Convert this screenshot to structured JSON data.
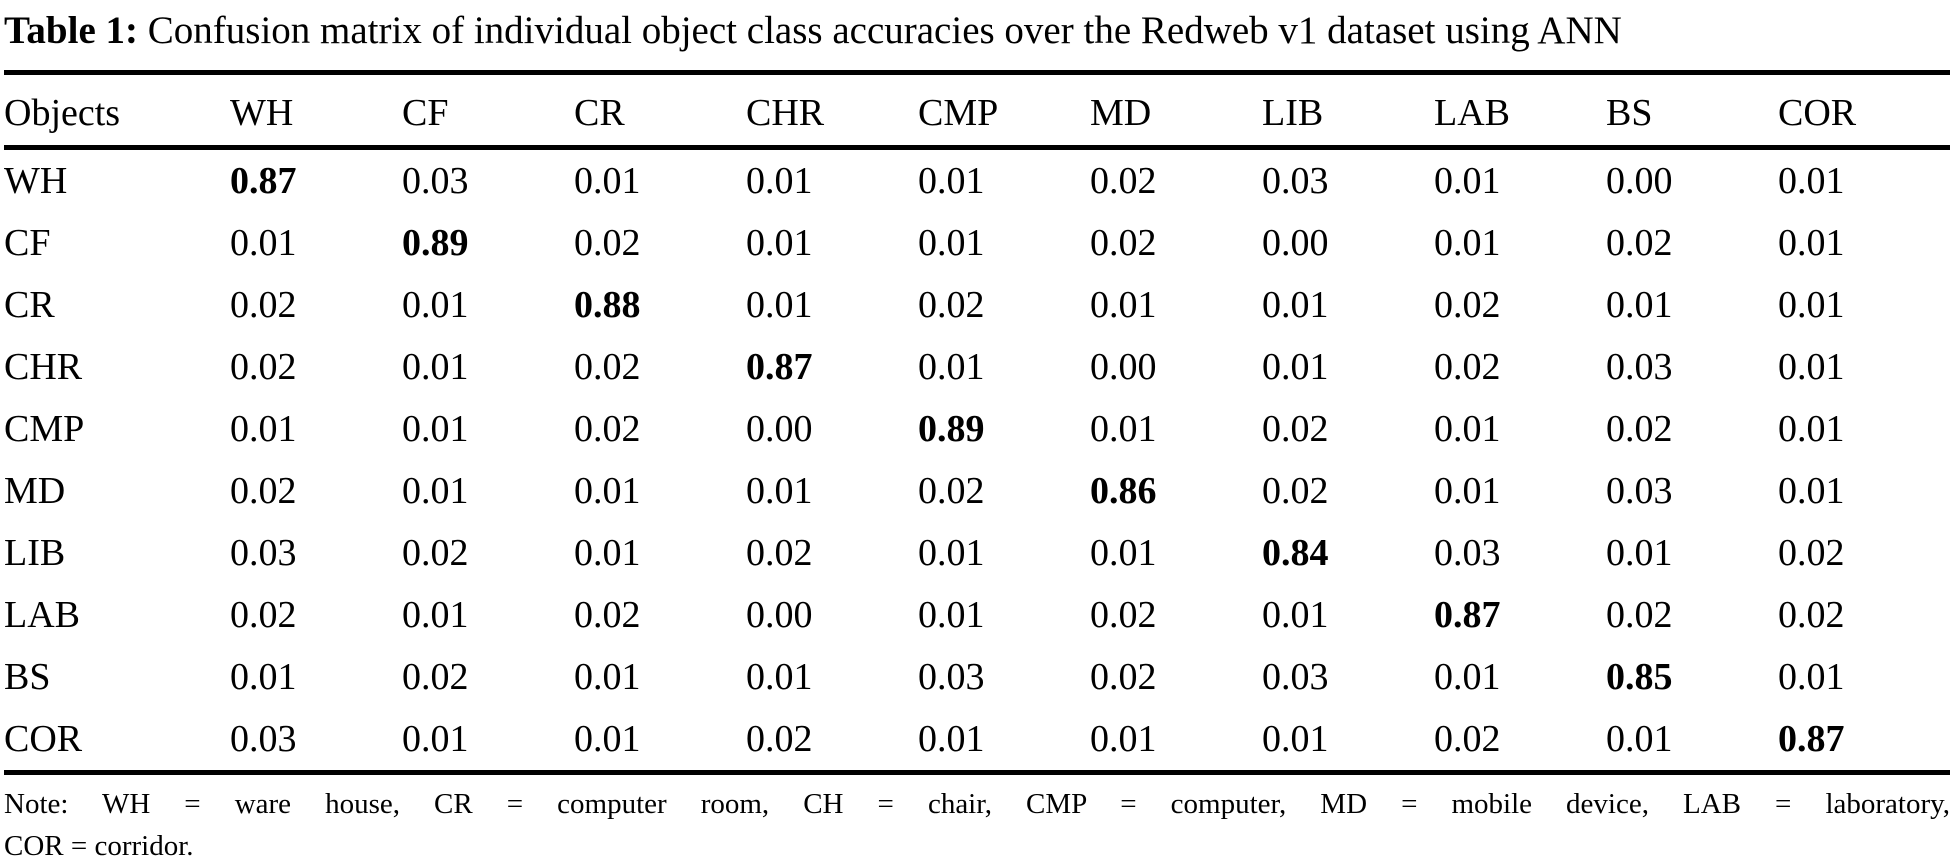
{
  "colors": {
    "text": "#000000",
    "background": "#ffffff",
    "rule": "#000000"
  },
  "title": {
    "label": "Table 1:",
    "text": "Confusion matrix of individual object class accuracies over the Redweb v1 dataset using ANN"
  },
  "table": {
    "corner_header": "Objects",
    "columns": [
      "WH",
      "CF",
      "CR",
      "CHR",
      "CMP",
      "MD",
      "LIB",
      "LAB",
      "BS",
      "COR"
    ],
    "rows": [
      {
        "label": "WH",
        "values": [
          "0.87",
          "0.03",
          "0.01",
          "0.01",
          "0.01",
          "0.02",
          "0.03",
          "0.01",
          "0.00",
          "0.01"
        ],
        "bold_col": 0
      },
      {
        "label": "CF",
        "values": [
          "0.01",
          "0.89",
          "0.02",
          "0.01",
          "0.01",
          "0.02",
          "0.00",
          "0.01",
          "0.02",
          "0.01"
        ],
        "bold_col": 1
      },
      {
        "label": "CR",
        "values": [
          "0.02",
          "0.01",
          "0.88",
          "0.01",
          "0.02",
          "0.01",
          "0.01",
          "0.02",
          "0.01",
          "0.01"
        ],
        "bold_col": 2
      },
      {
        "label": "CHR",
        "values": [
          "0.02",
          "0.01",
          "0.02",
          "0.87",
          "0.01",
          "0.00",
          "0.01",
          "0.02",
          "0.03",
          "0.01"
        ],
        "bold_col": 3
      },
      {
        "label": "CMP",
        "values": [
          "0.01",
          "0.01",
          "0.02",
          "0.00",
          "0.89",
          "0.01",
          "0.02",
          "0.01",
          "0.02",
          "0.01"
        ],
        "bold_col": 4
      },
      {
        "label": "MD",
        "values": [
          "0.02",
          "0.01",
          "0.01",
          "0.01",
          "0.02",
          "0.86",
          "0.02",
          "0.01",
          "0.03",
          "0.01"
        ],
        "bold_col": 5
      },
      {
        "label": "LIB",
        "values": [
          "0.03",
          "0.02",
          "0.01",
          "0.02",
          "0.01",
          "0.01",
          "0.84",
          "0.03",
          "0.01",
          "0.02"
        ],
        "bold_col": 6
      },
      {
        "label": "LAB",
        "values": [
          "0.02",
          "0.01",
          "0.02",
          "0.00",
          "0.01",
          "0.02",
          "0.01",
          "0.87",
          "0.02",
          "0.02"
        ],
        "bold_col": 7
      },
      {
        "label": "BS",
        "values": [
          "0.01",
          "0.02",
          "0.01",
          "0.01",
          "0.03",
          "0.02",
          "0.03",
          "0.01",
          "0.85",
          "0.01"
        ],
        "bold_col": 8
      },
      {
        "label": "COR",
        "values": [
          "0.03",
          "0.01",
          "0.01",
          "0.02",
          "0.01",
          "0.01",
          "0.01",
          "0.02",
          "0.01",
          "0.87"
        ],
        "bold_col": 9
      }
    ]
  },
  "note": {
    "line1": "Note: WH = ware house, CR = computer room, CH = chair, CMP = computer, MD = mobile device, LAB = laboratory,",
    "line2": "COR = corridor."
  }
}
